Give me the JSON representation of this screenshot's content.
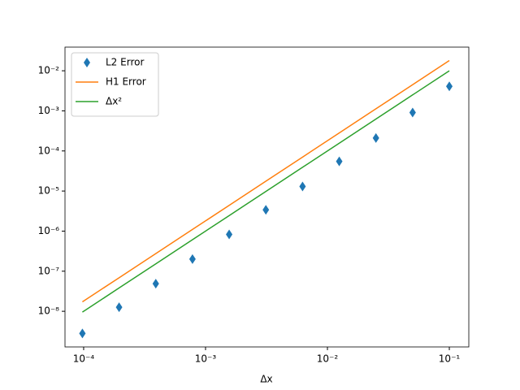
{
  "chart_data": {
    "type": "line",
    "x_label": "Δx",
    "x": [
      0.1,
      0.05,
      0.025,
      0.0125,
      0.00625,
      0.003125,
      0.0015625,
      0.00078125,
      0.000390625,
      0.0001953125,
      9.765625e-05
    ],
    "series": [
      {
        "name": "L2 Error",
        "color": "#1f77b4",
        "marker": "diamond",
        "line": false,
        "values": [
          0.0041,
          0.00091,
          0.00021,
          5.5e-05,
          1.3e-05,
          3.4e-06,
          8.3e-07,
          2e-07,
          4.9e-08,
          1.26e-08,
          2.8e-09
        ]
      },
      {
        "name": "H1 Error",
        "color": "#ff7f0e",
        "line": true,
        "values": [
          0.018,
          0.0045,
          0.001125,
          0.000281,
          7.03e-05,
          1.76e-05,
          4.39e-06,
          1.1e-06,
          2.75e-07,
          6.87e-08,
          1.72e-08
        ]
      },
      {
        "name": "Δx²",
        "color": "#2ca02c",
        "line": true,
        "values": [
          0.01,
          0.0025,
          0.000625,
          0.00015625,
          3.90625e-05,
          9.765625e-06,
          2.44140625e-06,
          6.103515625e-07,
          1.52587890625e-07,
          3.814697265625e-08,
          9.5367431640625e-09
        ]
      }
    ],
    "xscale": "log",
    "yscale": "log",
    "xlim": [
      7.03e-05,
      0.1445
    ],
    "ylim": [
      1.29e-09,
      0.0389
    ],
    "xticks": [
      {
        "value": 0.0001,
        "label": "10⁻⁴"
      },
      {
        "value": 0.001,
        "label": "10⁻³"
      },
      {
        "value": 0.01,
        "label": "10⁻²"
      },
      {
        "value": 0.1,
        "label": "10⁻¹"
      }
    ],
    "yticks": [
      {
        "value": 1e-08,
        "label": "10⁻⁸"
      },
      {
        "value": 1e-07,
        "label": "10⁻⁷"
      },
      {
        "value": 1e-06,
        "label": "10⁻⁶"
      },
      {
        "value": 1e-05,
        "label": "10⁻⁵"
      },
      {
        "value": 0.0001,
        "label": "10⁻⁴"
      },
      {
        "value": 0.001,
        "label": "10⁻³"
      },
      {
        "value": 0.01,
        "label": "10⁻²"
      }
    ],
    "legend": "upper left",
    "grid": false
  }
}
